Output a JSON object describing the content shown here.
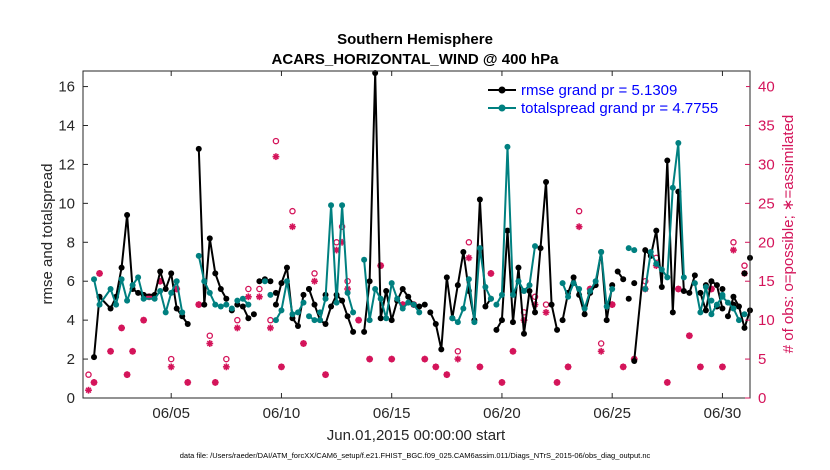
{
  "colors": {
    "rmse": "#000000",
    "spread": "#008080",
    "obs": "#d4145a",
    "legend_text": "#0000ff",
    "axis": "#262626",
    "grid": "#e6e6e6"
  },
  "chart_data": {
    "type": "line",
    "title": "Southern Hemisphere",
    "subtitle": "ACARS_HORIZONTAL_WIND @ 400 hPa",
    "xlabel": "Jun.01,2015 00:00:00 start",
    "ylabel": "rmse and totalspread",
    "ylabel_right": "# of obs: o=possible; ∗=assimilated",
    "footer": "data file: /Users/raeder/DAI/ATM_forcXX/CAM6_setup/f.e21.FHIST_BGC.f09_025.CAM6assim.011/Diags_NTrS_2015-06/obs_diag_output.nc",
    "xlim": [
      1.0,
      31.25
    ],
    "ylim": [
      0,
      16.8
    ],
    "ylim_right": [
      0,
      42
    ],
    "x_ticks": [
      5,
      10,
      15,
      20,
      25,
      30
    ],
    "x_tick_labels": [
      "06/05",
      "06/10",
      "06/15",
      "06/20",
      "06/25",
      "06/30"
    ],
    "y_ticks": [
      0,
      2,
      4,
      6,
      8,
      10,
      12,
      14,
      16
    ],
    "y_tick_labels": [
      "0",
      "2",
      "4",
      "6",
      "8",
      "10",
      "12",
      "14",
      "16"
    ],
    "y_right_ticks": [
      0,
      5,
      10,
      15,
      20,
      25,
      30,
      35,
      40
    ],
    "y_right_tick_labels": [
      "0",
      "5",
      "10",
      "15",
      "20",
      "25",
      "30",
      "35",
      "40"
    ],
    "legend": [
      "rmse grand pr = 5.1309",
      "totalspread grand pr = 4.7755"
    ],
    "legend_location": "top-right",
    "series": [
      {
        "name": "rmse",
        "segments": [
          {
            "x": [
              1.5,
              1.75,
              2.25,
              2.5,
              2.75,
              3.0,
              3.25,
              3.5,
              3.75,
              4.25,
              4.5,
              4.75,
              5.0,
              5.25,
              5.5,
              5.75
            ],
            "y": [
              2.1,
              5.2,
              4.6,
              5.2,
              6.7,
              9.4,
              5.6,
              5.4,
              5.3,
              5.3,
              6.5,
              5.6,
              6.4,
              4.6,
              4.2,
              3.8
            ]
          },
          {
            "x": [
              6.25,
              6.5,
              6.75,
              7.0,
              7.25,
              7.5
            ],
            "y": [
              12.8,
              4.8,
              8.2,
              6.4,
              5.6,
              5.1
            ]
          },
          {
            "x": [
              8.25,
              8.5
            ],
            "y": [
              4.7,
              4.1
            ]
          },
          {
            "x": [
              9.0,
              9.25
            ],
            "y": [
              6.0,
              6.1
            ]
          },
          {
            "x": [
              9.75,
              10.0,
              10.25,
              10.5,
              10.75,
              11.0
            ],
            "y": [
              4.8,
              5.9,
              6.7,
              4.1,
              3.7,
              5.3
            ]
          },
          {
            "x": [
              11.25,
              11.5,
              11.75,
              12.0,
              12.25,
              12.5,
              12.75,
              13.0,
              13.25
            ],
            "y": [
              5.6,
              4.8,
              4.0,
              3.8,
              4.7,
              5.3,
              5.0,
              4.2,
              3.4
            ]
          },
          {
            "x": [
              13.75,
              14.0,
              14.25,
              14.5,
              14.75,
              15.0,
              15.25,
              15.5,
              15.75,
              16.0,
              16.25,
              16.5
            ],
            "y": [
              3.4,
              6.0,
              16.7,
              4.1,
              5.5,
              4.0,
              5.0,
              5.6,
              5.2,
              4.8,
              4.7,
              4.8
            ]
          },
          {
            "x": [
              16.75,
              17.0,
              17.25,
              17.5,
              17.75,
              18.0,
              18.25,
              18.5,
              18.75,
              19.0,
              19.25,
              19.5
            ],
            "y": [
              4.4,
              3.8,
              2.5,
              6.2,
              4.1,
              5.8,
              7.5,
              5.5,
              4.0,
              10.2,
              4.7,
              5.1
            ]
          },
          {
            "x": [
              19.75,
              20.0,
              20.25,
              20.5,
              20.75,
              21.0,
              21.25,
              21.5,
              21.75,
              22.0,
              22.25,
              22.5
            ],
            "y": [
              3.5,
              4.0,
              8.6,
              3.9,
              6.7,
              3.3,
              5.5,
              4.4,
              7.7,
              11.1,
              4.8,
              3.5
            ]
          },
          {
            "x": [
              22.75,
              23.0,
              23.25,
              23.5,
              23.75,
              24.0,
              24.25,
              24.5,
              24.75,
              25.0
            ],
            "y": [
              4.0,
              5.4,
              6.2,
              5.3,
              4.3,
              5.4,
              5.8,
              7.5,
              4.0,
              5.8
            ]
          },
          {
            "x": [
              25.25,
              25.5
            ],
            "y": [
              6.5,
              6.1
            ]
          },
          {
            "x": [
              26.0,
              26.5,
              26.75,
              27.0,
              27.25,
              27.5,
              27.75,
              28.0,
              28.25,
              28.5,
              28.75
            ],
            "y": [
              1.9,
              7.6,
              7.3,
              8.6,
              5.7,
              12.2,
              4.4,
              10.6,
              5.5,
              5.4,
              6.3
            ]
          },
          {
            "x": [
              29.0,
              29.25,
              29.5,
              29.75,
              30.0
            ],
            "y": [
              5.4,
              4.5,
              6.0,
              5.8,
              4.6
            ]
          },
          {
            "x": [
              30.25,
              30.5,
              30.75,
              31.0,
              31.25
            ],
            "y": [
              4.2,
              5.2,
              4.7,
              3.6,
              4.5
            ]
          }
        ],
        "extra_points": {
          "x": [
            7.75,
            8.0,
            8.75,
            9.5,
            9.75,
            11.25,
            12.0,
            25.75,
            26.0,
            29.25,
            29.75,
            30.0,
            30.5,
            31.0,
            31.25
          ],
          "y": [
            4.5,
            4.8,
            4.3,
            6.0,
            5.4,
            5.6,
            5.3,
            5.1,
            5.9,
            5.8,
            4.7,
            5.6,
            4.8,
            6.4,
            7.2
          ]
        }
      },
      {
        "name": "totalspread",
        "segments": [
          {
            "x": [
              1.5,
              1.75,
              2.25,
              2.5,
              2.75,
              3.0,
              3.25,
              3.5,
              3.75,
              4.25,
              4.5,
              4.75,
              5.0,
              5.25,
              5.5
            ],
            "y": [
              6.1,
              4.8,
              5.6,
              4.8,
              6.1,
              5.0,
              5.8,
              6.2,
              5.1,
              5.1,
              5.5,
              4.4,
              5.4,
              6.0,
              4.4
            ]
          },
          {
            "x": [
              6.25,
              6.5,
              6.75,
              7.0,
              7.25,
              7.5
            ],
            "y": [
              7.3,
              6.0,
              5.4,
              4.8,
              4.7,
              4.8
            ]
          },
          {
            "x": [
              8.25,
              8.5
            ],
            "y": [
              5.1,
              4.8
            ]
          },
          {
            "x": [
              9.75,
              10.0,
              10.25,
              10.5,
              10.75,
              11.0
            ],
            "y": [
              4.0,
              4.5,
              6.0,
              4.3,
              4.4,
              4.9
            ]
          },
          {
            "x": [
              11.25,
              11.5,
              11.75,
              12.0,
              12.25,
              12.5,
              12.75,
              13.0,
              13.25
            ],
            "y": [
              4.2,
              4.0,
              4.0,
              5.1,
              9.9,
              4.9,
              9.9,
              5.4,
              4.4
            ]
          },
          {
            "x": [
              13.75,
              14.0,
              14.25,
              14.5,
              14.75,
              15.0,
              15.25,
              15.5,
              15.75,
              16.0,
              16.25
            ],
            "y": [
              7.1,
              4.0,
              5.6,
              5.1,
              4.1,
              5.9,
              5.1,
              4.6,
              4.9,
              4.8,
              4.4
            ]
          },
          {
            "x": [
              17.75,
              18.0,
              18.25,
              18.5,
              18.75,
              19.0,
              19.25,
              19.5
            ],
            "y": [
              4.1,
              3.9,
              4.6,
              6.1,
              3.9,
              7.7,
              5.7,
              5.1
            ]
          },
          {
            "x": [
              19.75,
              20.0,
              20.25,
              20.5,
              20.75,
              21.0,
              21.25,
              21.5
            ],
            "y": [
              4.8,
              5.3,
              12.9,
              5.3,
              6.0,
              5.5,
              5.8,
              7.8
            ]
          },
          {
            "x": [
              22.75,
              23.0,
              23.25,
              23.5,
              23.75,
              24.0,
              24.25,
              24.5,
              24.75,
              25.0
            ],
            "y": [
              5.9,
              5.2,
              5.9,
              5.6,
              4.6,
              5.5,
              6.0,
              7.5,
              4.7,
              5.6
            ]
          },
          {
            "x": [
              26.5,
              26.75,
              27.0,
              27.25,
              27.5,
              27.75,
              28.0,
              28.25
            ],
            "y": [
              5.6,
              7.5,
              6.9,
              6.6,
              6.2,
              10.8,
              13.1,
              6.2
            ]
          },
          {
            "x": [
              28.75,
              29.0,
              29.25,
              29.5,
              29.75,
              30.0,
              30.25,
              30.5,
              30.75
            ],
            "y": [
              5.9,
              4.4,
              5.7,
              4.3,
              4.8,
              5.2,
              4.9,
              4.6,
              4.0
            ]
          }
        ],
        "extra_points": {
          "x": [
            7.75,
            8.0,
            9.25,
            9.5,
            11.75,
            25.75,
            26.0,
            29.5,
            30.0,
            31.0
          ],
          "y": [
            4.6,
            5.0,
            6.0,
            5.3,
            4.4,
            7.7,
            7.6,
            5.0,
            5.3,
            4.3
          ]
        }
      }
    ],
    "obs_possible": {
      "x": [
        1.25,
        1.5,
        1.75,
        2.25,
        2.75,
        3.0,
        3.25,
        3.75,
        4.0,
        4.5,
        5.0,
        5.25,
        5.75,
        6.25,
        6.75,
        7.0,
        7.5,
        8.0,
        8.5,
        9.0,
        9.5,
        9.75,
        10.0,
        10.5,
        11.0,
        11.5,
        12.0,
        12.5,
        12.75,
        13.0,
        13.5,
        14.0,
        14.5,
        15.0,
        15.5,
        16.0,
        16.5,
        17.0,
        17.5,
        18.0,
        18.5,
        19.0,
        19.5,
        20.0,
        20.5,
        21.0,
        21.5,
        22.0,
        22.5,
        23.0,
        23.5,
        24.0,
        24.5,
        25.0,
        25.5,
        26.0,
        26.5,
        27.0,
        27.5,
        28.0,
        28.5,
        29.0,
        29.5,
        30.0,
        30.5,
        31.0
      ],
      "y": [
        3,
        2,
        16,
        6,
        9,
        3,
        6,
        10,
        13,
        15,
        5,
        14,
        2,
        12,
        8,
        2,
        5,
        10,
        14,
        14,
        10,
        33,
        4,
        24,
        7,
        16,
        3,
        20,
        22,
        15,
        10,
        5,
        17,
        5,
        12,
        12,
        5,
        4,
        3,
        6,
        20,
        4,
        16,
        2,
        6,
        11,
        13,
        12,
        2,
        4,
        24,
        14,
        7,
        12,
        4,
        5,
        15,
        18,
        2,
        14,
        8,
        4,
        14,
        4,
        20,
        17
      ]
    },
    "obs_assimilated": {
      "x": [
        1.25,
        1.5,
        1.75,
        2.25,
        2.75,
        3.0,
        3.25,
        3.75,
        4.0,
        4.5,
        5.0,
        5.25,
        5.75,
        6.25,
        6.75,
        7.0,
        7.5,
        8.0,
        8.5,
        9.0,
        9.5,
        9.75,
        10.0,
        10.5,
        11.0,
        11.5,
        12.0,
        12.5,
        12.75,
        13.0,
        13.5,
        14.0,
        14.5,
        15.0,
        15.5,
        16.0,
        16.5,
        17.0,
        17.5,
        18.0,
        18.5,
        19.0,
        19.5,
        20.0,
        20.5,
        21.0,
        21.5,
        22.0,
        22.5,
        23.0,
        23.5,
        24.0,
        24.5,
        25.0,
        25.5,
        26.0,
        26.5,
        27.0,
        27.5,
        28.0,
        28.5,
        29.0,
        29.5,
        30.0,
        30.5,
        31.0
      ],
      "y": [
        1,
        2,
        16,
        6,
        9,
        3,
        6,
        10,
        13,
        15,
        4,
        14,
        2,
        12,
        7,
        2,
        4,
        9,
        13,
        13,
        9,
        31,
        4,
        22,
        7,
        15,
        3,
        19,
        20,
        14,
        10,
        5,
        17,
        5,
        12,
        12,
        5,
        4,
        3,
        5,
        18,
        4,
        16,
        2,
        6,
        10,
        12,
        11,
        2,
        4,
        22,
        14,
        6,
        12,
        4,
        5,
        14,
        17,
        2,
        14,
        8,
        4,
        14,
        4,
        19,
        16
      ]
    }
  }
}
